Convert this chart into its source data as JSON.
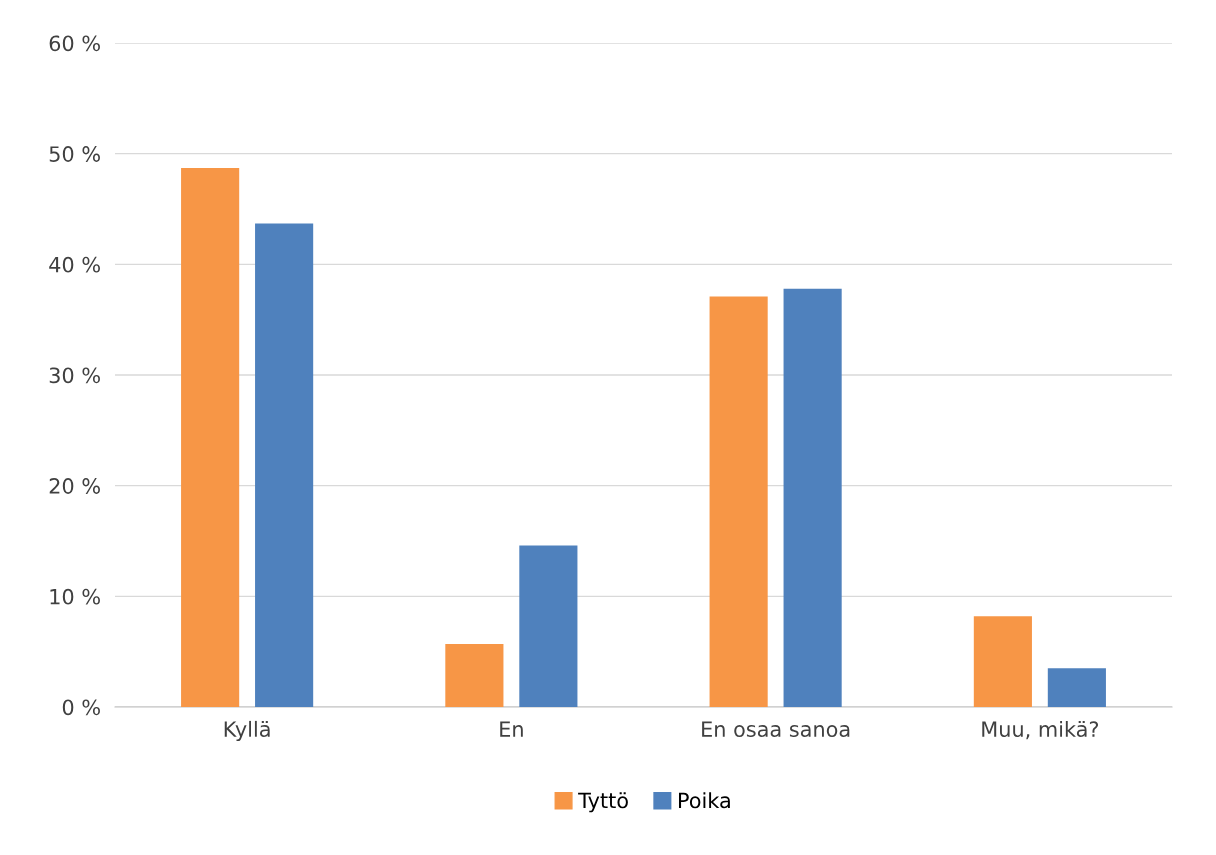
{
  "chart_data": {
    "type": "bar",
    "categories": [
      "Kyllä",
      "En",
      "En osaa sanoa",
      "Muu, mikä?"
    ],
    "series": [
      {
        "name": "Tyttö",
        "color": "#f79646",
        "values": [
          48.7,
          5.7,
          37.1,
          8.2
        ]
      },
      {
        "name": "Poika",
        "color": "#4f81bd",
        "values": [
          43.7,
          14.6,
          37.8,
          3.5
        ]
      }
    ],
    "ylim": [
      0,
      60
    ],
    "yticks": [
      {
        "value": 0,
        "label": "0 %"
      },
      {
        "value": 10,
        "label": "10 %"
      },
      {
        "value": 20,
        "label": "20 %"
      },
      {
        "value": 30,
        "label": "30 %"
      },
      {
        "value": 40,
        "label": "40 %"
      },
      {
        "value": 50,
        "label": "50 %"
      },
      {
        "value": 60,
        "label": "60 %"
      }
    ],
    "grid": "y",
    "legend": "bottom"
  }
}
